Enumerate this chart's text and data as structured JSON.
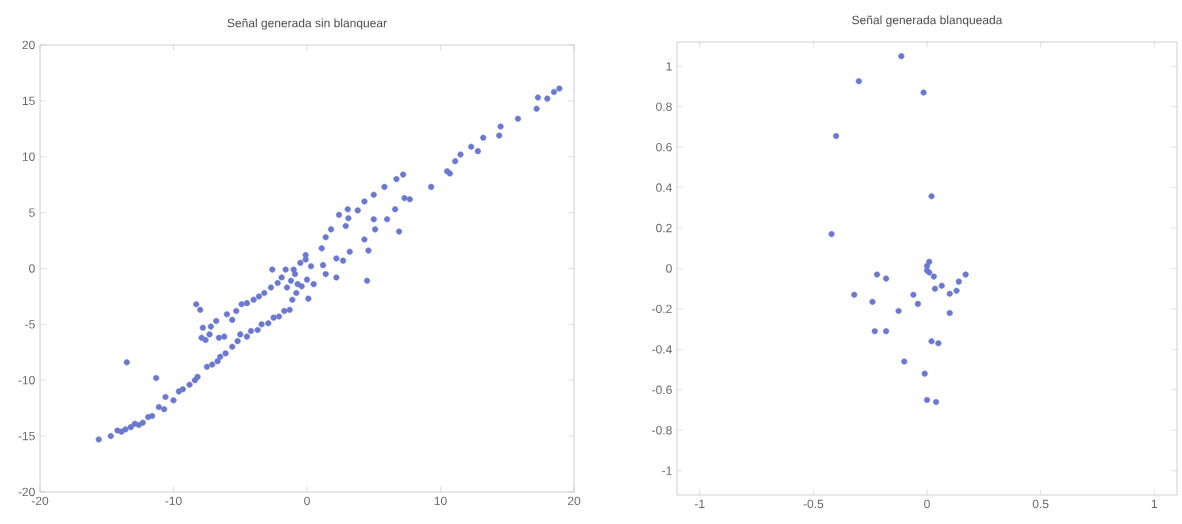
{
  "chart_data": [
    {
      "type": "scatter",
      "title": "Señal generada sin blanquear",
      "xlim": [
        -20,
        20
      ],
      "ylim": [
        -20,
        20
      ],
      "xticks": [
        -20,
        -10,
        0,
        10,
        20
      ],
      "yticks": [
        -20,
        -15,
        -10,
        -5,
        0,
        5,
        10,
        15,
        20
      ],
      "grid": false,
      "marker": "circle",
      "series": [
        {
          "color": "#6a78d0",
          "x": [
            -15.6,
            -14.7,
            -14.2,
            -13.9,
            -13.6,
            -13.2,
            -12.9,
            -12.6,
            -12.3,
            -11.9,
            -11.6,
            -11.1,
            -10.7,
            -10.6,
            -10.0,
            -9.6,
            -9.3,
            -8.8,
            -8.4,
            -8.2,
            -7.5,
            -7.1,
            -6.7,
            -6.5,
            -6.1,
            -5.6,
            -5.2,
            -5.0,
            -4.5,
            -4.2,
            -3.7,
            -3.4,
            -2.9,
            -2.5,
            -2.1,
            -1.7,
            -1.3,
            -1.1,
            -0.8,
            -0.4,
            0,
            -13.5,
            -11.3,
            -8.3,
            -8.0,
            -7.8,
            -7.9,
            -7.6,
            -7.3,
            -7.2,
            -6.8,
            -6.6,
            -6.2,
            -6.0,
            -5.6,
            -5.3,
            -4.9,
            -4.5,
            -4.0,
            -3.6,
            -3.2,
            -2.7,
            -2.2,
            -1.9,
            -2.6,
            -1.6,
            -1.0,
            -0.5,
            -1.5,
            -1.2,
            -0.9,
            -0.7,
            -0.1,
            0.3,
            0.1,
            0.5,
            1.4,
            2.2,
            4.5,
            2.7,
            -0.1,
            1.1,
            1.4,
            1.8,
            2.9,
            3.1,
            2.4,
            3.05,
            3.8,
            4.3,
            5.0,
            5.8,
            6.7,
            7.2,
            7.3,
            7.7,
            9.3,
            10.5,
            10.7,
            11.1,
            11.5,
            12.3,
            12.8,
            13.2,
            14.4,
            14.5,
            15.8,
            17.2,
            17.3,
            18.0,
            18.5,
            18.9,
            6.6,
            6.0,
            5.0,
            5.1,
            6.9,
            4.3,
            4.6,
            3.2,
            2.2,
            1.2
          ],
          "values": [
            -15.3,
            -15.0,
            -14.5,
            -14.6,
            -14.4,
            -14.2,
            -13.9,
            -14.0,
            -13.8,
            -13.3,
            -13.2,
            -12.4,
            -12.6,
            -11.5,
            -11.8,
            -11.0,
            -10.8,
            -10.4,
            -10.0,
            -9.7,
            -8.8,
            -8.6,
            -8.3,
            -7.9,
            -7.6,
            -7.0,
            -6.5,
            -5.9,
            -6.1,
            -5.6,
            -5.5,
            -5.0,
            -4.9,
            -4.4,
            -4.3,
            -3.8,
            -3.7,
            -2.8,
            -2.2,
            -1.6,
            -1.0,
            -8.4,
            -9.8,
            -3.2,
            -3.7,
            -5.3,
            -6.2,
            -6.4,
            -5.9,
            -5.2,
            -4.7,
            -6.2,
            -6.1,
            -4.1,
            -4.6,
            -3.8,
            -3.2,
            -3.1,
            -2.8,
            -2.5,
            -2.2,
            -1.7,
            -1.3,
            -0.8,
            -0.1,
            -0.1,
            -0.1,
            0.5,
            -1.7,
            -1.1,
            -0.5,
            -1.4,
            0.8,
            0.2,
            -2.7,
            -1.4,
            -0.5,
            -0.8,
            -1.1,
            0.7,
            1.2,
            1.8,
            2.8,
            3.5,
            3.8,
            4.5,
            4.8,
            5.3,
            5.2,
            6.0,
            6.6,
            7.3,
            8.0,
            8.4,
            6.3,
            6.2,
            7.3,
            8.7,
            8.5,
            9.6,
            10.2,
            10.9,
            10.5,
            11.7,
            11.9,
            12.7,
            13.4,
            14.3,
            15.3,
            15.2,
            15.8,
            16.1,
            5.3,
            4.4,
            4.4,
            3.5,
            3.3,
            2.6,
            1.6,
            1.5,
            0.9,
            0.3
          ]
        }
      ]
    },
    {
      "type": "scatter",
      "title": "Señal generada blanqueada",
      "xlim": [
        -1.1,
        1.1
      ],
      "ylim": [
        -1.12,
        1.12
      ],
      "xticks": [
        -1,
        -0.5,
        0,
        0.5,
        1
      ],
      "yticks": [
        -1,
        -0.8,
        -0.6,
        -0.4,
        -0.2,
        0,
        0.2,
        0.4,
        0.6,
        0.8,
        1
      ],
      "grid": false,
      "marker": "circle",
      "series": [
        {
          "color": "#6a78d0",
          "x": [
            -0.113,
            -0.3,
            -0.015,
            -0.4,
            0.02,
            -0.42,
            0.01,
            0,
            0,
            0.01,
            0.03,
            -0.22,
            -0.18,
            0.17,
            0.14,
            0.065,
            0.035,
            0.13,
            0.1,
            -0.32,
            -0.06,
            -0.24,
            -0.04,
            -0.125,
            0.1,
            -0.23,
            -0.18,
            0.02,
            0.05,
            -0.1,
            -0.01,
            0,
            0.04
          ],
          "values": [
            1.05,
            0.926,
            0.87,
            0.655,
            0.357,
            0.17,
            0.033,
            0.012,
            -0.01,
            -0.02,
            -0.04,
            -0.03,
            -0.05,
            -0.03,
            -0.065,
            -0.085,
            -0.1,
            -0.11,
            -0.125,
            -0.13,
            -0.13,
            -0.165,
            -0.175,
            -0.21,
            -0.22,
            -0.31,
            -0.31,
            -0.36,
            -0.37,
            -0.46,
            -0.52,
            -0.65,
            -0.66
          ]
        }
      ]
    }
  ]
}
